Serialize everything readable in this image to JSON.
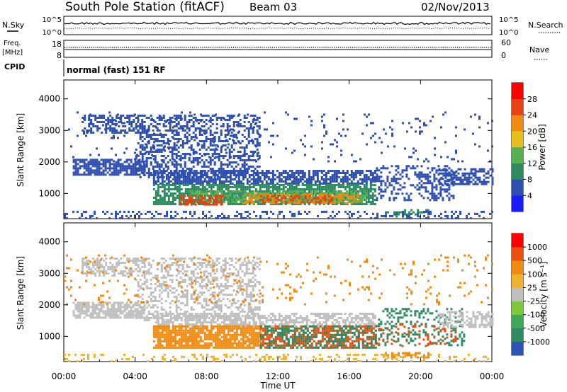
{
  "header": {
    "station": "South Pole Station (fitACF)",
    "beam": "Beam 03",
    "date": "02/Nov/2013"
  },
  "noise_panel": {
    "left_label": "N.Sky",
    "left_top": "10^5",
    "left_bottom": "10^0",
    "right_top": "10^5",
    "right_bottom": "10^0",
    "right_label": "N.Search"
  },
  "freq_panel": {
    "left_label_1": "Freq.",
    "left_label_2": "[MHz]",
    "left_top": "18",
    "left_bottom": "8",
    "right_top": "60",
    "right_bottom": "0",
    "right_label": "Nave"
  },
  "cpid_panel": {
    "label": "CPID",
    "mode": "normal (fast) 151 RF"
  },
  "chart_data": [
    {
      "type": "heatmap",
      "name": "power",
      "ylabel": "Slant Range [km]",
      "xlabel": "Time UT",
      "ylim": [
        200,
        4600
      ],
      "yticks": [
        "1000",
        "2000",
        "3000",
        "4000"
      ],
      "x_ticks": [
        "00:00",
        "04:00",
        "08:00",
        "12:00",
        "16:00",
        "20:00",
        "00:00"
      ],
      "colorbar_label": "Power [dB]",
      "colorbar_ticks": [
        "4",
        "8",
        "12",
        "16",
        "20",
        "24",
        "28"
      ],
      "colorbar_colors": [
        "#1a1aff",
        "#2f4fb0",
        "#2e8a60",
        "#55b050",
        "#e6c020",
        "#f08a10",
        "#e84010",
        "#ff0000"
      ],
      "regions": [
        {
          "t0": 0.5,
          "t1": 4.5,
          "r0": 1600,
          "r1": 2100,
          "c": "#2f4fb0",
          "d": 0.8
        },
        {
          "t0": 1.0,
          "t1": 4.5,
          "r0": 2900,
          "r1": 3500,
          "c": "#2f4fb0",
          "d": 0.5
        },
        {
          "t0": 4.0,
          "t1": 11.0,
          "r0": 1500,
          "r1": 3500,
          "c": "#2f4fb0",
          "d": 0.45
        },
        {
          "t0": 5.0,
          "t1": 17.5,
          "r0": 1300,
          "r1": 1750,
          "c": "#2f4fb0",
          "d": 0.7
        },
        {
          "t0": 5.0,
          "t1": 17.5,
          "r0": 650,
          "r1": 1300,
          "c": "#2e8a60",
          "d": 0.75
        },
        {
          "t0": 7.0,
          "t1": 17.0,
          "r0": 700,
          "r1": 1100,
          "c": "#55b050",
          "d": 0.6
        },
        {
          "t0": 6.5,
          "t1": 9.0,
          "r0": 650,
          "r1": 950,
          "c": "#e84010",
          "d": 0.55
        },
        {
          "t0": 10.0,
          "t1": 16.5,
          "r0": 700,
          "r1": 1000,
          "c": "#f08a10",
          "d": 0.5
        },
        {
          "t0": 11.0,
          "t1": 15.0,
          "r0": 700,
          "r1": 950,
          "c": "#e84010",
          "d": 0.35
        },
        {
          "t0": 17.5,
          "t1": 22.0,
          "r0": 800,
          "r1": 1900,
          "c": "#2f4fb0",
          "d": 0.35
        },
        {
          "t0": 21.0,
          "t1": 24.0,
          "r0": 1300,
          "r1": 1800,
          "c": "#2f4fb0",
          "d": 0.55
        },
        {
          "t0": 18.0,
          "t1": 20.5,
          "r0": 250,
          "r1": 500,
          "c": "#2e8a60",
          "d": 0.5
        },
        {
          "t0": 0.0,
          "t1": 24.0,
          "r0": 200,
          "r1": 450,
          "c": "#2f4fb0",
          "d": 0.25
        },
        {
          "t0": 0.0,
          "t1": 24.0,
          "r0": 2000,
          "r1": 3600,
          "c": "#2f4fb0",
          "d": 0.05
        }
      ]
    },
    {
      "type": "heatmap",
      "name": "velocity",
      "ylabel": "Slant Range [km]",
      "xlabel": "Time UT",
      "ylim": [
        200,
        4600
      ],
      "yticks": [
        "1000",
        "2000",
        "3000",
        "4000"
      ],
      "x_ticks": [
        "00:00",
        "04:00",
        "08:00",
        "12:00",
        "16:00",
        "20:00",
        "00:00"
      ],
      "colorbar_label": "Velocity [m s⁻¹]",
      "colorbar_ticks": [
        "1000",
        "500",
        "100",
        "25",
        "-25",
        "-100",
        "-500",
        "-1000"
      ],
      "colorbar_colors": [
        "#2c52b8",
        "#2e8a60",
        "#3ea85a",
        "#7ec83c",
        "#bfbfbf",
        "#f0b030",
        "#f08a10",
        "#e85010",
        "#ff0000"
      ],
      "regions": [
        {
          "t0": 0.5,
          "t1": 4.5,
          "r0": 1600,
          "r1": 2100,
          "c": "#bfbfbf",
          "d": 0.8
        },
        {
          "t0": 1.0,
          "t1": 4.5,
          "r0": 2900,
          "r1": 3500,
          "c": "#bfbfbf",
          "d": 0.5
        },
        {
          "t0": 4.0,
          "t1": 11.0,
          "r0": 1500,
          "r1": 3500,
          "c": "#bfbfbf",
          "d": 0.4
        },
        {
          "t0": 5.0,
          "t1": 17.5,
          "r0": 1300,
          "r1": 1750,
          "c": "#bfbfbf",
          "d": 0.6
        },
        {
          "t0": 5.0,
          "t1": 11.0,
          "r0": 650,
          "r1": 1350,
          "c": "#f08a10",
          "d": 0.85
        },
        {
          "t0": 11.0,
          "t1": 17.5,
          "r0": 650,
          "r1": 1350,
          "c": "#e85010",
          "d": 0.55
        },
        {
          "t0": 11.0,
          "t1": 17.5,
          "r0": 650,
          "r1": 1350,
          "c": "#2e8a60",
          "d": 0.4
        },
        {
          "t0": 17.5,
          "t1": 22.5,
          "r0": 700,
          "r1": 1900,
          "c": "#2e8a60",
          "d": 0.25
        },
        {
          "t0": 17.5,
          "t1": 22.0,
          "r0": 700,
          "r1": 1400,
          "c": "#e85010",
          "d": 0.2
        },
        {
          "t0": 21.0,
          "t1": 24.0,
          "r0": 1300,
          "r1": 1800,
          "c": "#bfbfbf",
          "d": 0.55
        },
        {
          "t0": 18.0,
          "t1": 20.5,
          "r0": 300,
          "r1": 500,
          "c": "#f08a10",
          "d": 0.5
        },
        {
          "t0": 0.0,
          "t1": 24.0,
          "r0": 200,
          "r1": 450,
          "c": "#f0b030",
          "d": 0.2
        },
        {
          "t0": 0.0,
          "t1": 24.0,
          "r0": 2000,
          "r1": 3600,
          "c": "#f08a10",
          "d": 0.05
        }
      ]
    }
  ]
}
